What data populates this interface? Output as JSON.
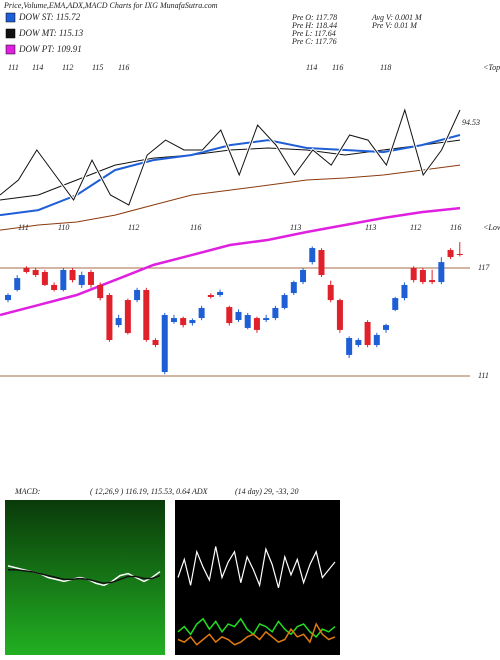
{
  "chart_data": [
    {
      "type": "candlestick",
      "title": "Price,Volume,EMA,ADX,MACD Charts for IXG MunafaSutra.com",
      "legend": [
        {
          "label": "DOW ST: 115.72",
          "color": "#1f5fd6"
        },
        {
          "label": "DOW MT: 115.13",
          "color": "#111111"
        },
        {
          "label": "DOW PT: 109.91",
          "color": "#e020e0"
        }
      ],
      "info": [
        "Pre  O: 117.78",
        "Pre  H: 118.44",
        "Pre  L: 117.64",
        "Pre  C: 117.76",
        "Avg  V: 0.001 M",
        "Pre  V: 0.01 M"
      ],
      "annotations": [
        "111",
        "114",
        "112",
        "115",
        "116",
        "114",
        "116",
        "118",
        "<Tops",
        "94.53",
        "111",
        "110",
        "112",
        "116",
        "113",
        "113",
        "112",
        "116",
        "<Lows"
      ],
      "ylim": [
        105.22,
        128.56
      ],
      "yticks": [
        117,
        111
      ],
      "up_color": "#1f5fd6",
      "down_color": "#e0202a",
      "open": [
        115.22,
        115.78,
        117.0,
        116.89,
        116.78,
        116.06,
        115.78,
        116.89,
        116.06,
        116.78,
        116.06,
        115.5,
        113.83,
        115.22,
        115.22,
        115.78,
        113.0,
        111.22,
        114.0,
        114.22,
        113.94,
        114.22,
        115.5,
        115.5,
        114.83,
        114.11,
        113.67,
        114.22,
        114.11,
        114.22,
        114.78,
        115.61,
        116.22,
        117.33,
        118.0,
        116.06,
        115.22,
        112.17,
        112.72,
        114.0,
        112.72,
        113.56,
        114.67,
        115.33,
        117.0,
        116.89,
        116.33,
        116.22,
        118.0,
        117.78
      ],
      "high": [
        115.6,
        116.6,
        117.1,
        117.0,
        116.9,
        116.2,
        117.0,
        117.0,
        116.8,
        116.9,
        116.2,
        115.6,
        114.4,
        115.3,
        115.9,
        115.9,
        113.1,
        114.5,
        114.4,
        114.3,
        114.2,
        114.9,
        115.6,
        115.8,
        114.9,
        114.7,
        114.5,
        114.3,
        114.4,
        114.9,
        115.6,
        116.3,
        117.0,
        118.2,
        118.1,
        116.3,
        115.3,
        113.2,
        113.1,
        114.1,
        113.4,
        113.9,
        115.4,
        116.2,
        117.1,
        117.0,
        116.9,
        117.6,
        118.1,
        118.44
      ],
      "low": [
        115.1,
        115.7,
        116.7,
        116.5,
        116.0,
        115.7,
        115.7,
        116.2,
        115.9,
        115.9,
        115.2,
        112.9,
        113.7,
        113.3,
        115.1,
        112.9,
        112.6,
        111.1,
        113.9,
        113.7,
        113.8,
        114.1,
        115.3,
        115.4,
        113.8,
        114.0,
        113.6,
        113.4,
        114.0,
        114.1,
        114.7,
        115.5,
        116.1,
        117.2,
        116.5,
        115.1,
        113.4,
        112.0,
        112.6,
        112.6,
        112.6,
        113.4,
        114.6,
        115.2,
        116.2,
        116.1,
        116.1,
        116.1,
        117.5,
        117.64
      ],
      "close": [
        115.5,
        116.44,
        116.78,
        116.61,
        116.06,
        115.78,
        116.89,
        116.33,
        116.61,
        116.06,
        115.33,
        113.0,
        114.22,
        113.39,
        115.78,
        113.0,
        112.72,
        114.39,
        114.22,
        113.83,
        114.11,
        114.78,
        115.39,
        115.67,
        113.94,
        114.56,
        114.39,
        113.56,
        114.22,
        114.78,
        115.5,
        116.22,
        116.89,
        118.11,
        116.61,
        115.22,
        113.56,
        113.11,
        113.0,
        112.72,
        113.28,
        113.83,
        115.33,
        116.06,
        116.33,
        116.22,
        116.22,
        117.33,
        117.61,
        117.76
      ],
      "overlays": [
        {
          "color": "#8b3a0e",
          "values": [
            119.11,
            119.39,
            119.56,
            119.94,
            120.5,
            121.06,
            121.33,
            121.61,
            121.89,
            122.0,
            122.17,
            122.44,
            122.72
          ]
        },
        {
          "color": "#111111",
          "values": [
            120.78,
            121.06,
            121.89,
            122.72,
            123.11,
            123.28,
            123.56,
            123.67,
            123.56,
            123.28,
            123.56,
            123.83,
            124.11
          ]
        },
        {
          "color": "#1f5fd6",
          "values": [
            119.94,
            120.22,
            121.06,
            122.44,
            123.0,
            123.28,
            123.83,
            124.11,
            123.67,
            123.56,
            123.44,
            123.83,
            124.39
          ]
        },
        {
          "color": "#e020e0",
          "values": [
            114.39,
            114.94,
            115.5,
            116.33,
            117.17,
            117.72,
            118.28,
            118.56,
            119.0,
            119.39,
            119.78,
            120.11,
            120.33
          ]
        },
        {
          "color": "#111111",
          "values": [
            121.06,
            121.89,
            123.56,
            122.17,
            120.78,
            123.0,
            121.06,
            120.5,
            123.28,
            124.11,
            123.56,
            123.56,
            124.67,
            122.17,
            124.94,
            123.83,
            122.17,
            123.56,
            122.72,
            124.39,
            124.11,
            122.72,
            125.78,
            122.17,
            123.56,
            125.78
          ]
        }
      ]
    },
    {
      "type": "line",
      "label": "MACD:",
      "text": "( 12,26,9 ) 116.19, 115.53, 0.64 ADX",
      "ylim": [
        -4,
        4
      ],
      "series": [
        {
          "color": "#ffffff",
          "values": [
            0.6,
            0.5,
            0.4,
            0.3,
            0.2,
            0.0,
            -0.1,
            -0.2,
            -0.1,
            0.0,
            -0.1,
            -0.3,
            -0.4,
            -0.2,
            0.1,
            0.2,
            0.0,
            -0.2,
            0.0,
            0.3
          ]
        },
        {
          "color": "#111111",
          "values": [
            0.4,
            0.4,
            0.35,
            0.3,
            0.2,
            0.1,
            0.0,
            -0.1,
            -0.1,
            -0.05,
            -0.1,
            -0.2,
            -0.3,
            -0.25,
            -0.1,
            0.05,
            0.05,
            -0.05,
            -0.05,
            0.1
          ]
        }
      ]
    },
    {
      "type": "line",
      "text": "(14 day) 29, -33, 20",
      "ylim": [
        0,
        60
      ],
      "series": [
        {
          "color": "#ffffff",
          "values": [
            30,
            37,
            27,
            40,
            34,
            29,
            42,
            30,
            36,
            40,
            28,
            38,
            33,
            27,
            41,
            35,
            26,
            38,
            31,
            37,
            28,
            35,
            40,
            30,
            33,
            36
          ]
        },
        {
          "color": "#22dd22",
          "values": [
            9,
            11,
            8,
            12,
            14,
            10,
            13,
            9,
            12,
            11,
            14,
            10,
            8,
            12,
            11,
            9,
            13,
            10,
            8,
            11,
            12,
            9,
            7,
            10,
            9,
            11
          ]
        },
        {
          "color": "#e07a10",
          "values": [
            6,
            5,
            7,
            4,
            6,
            8,
            5,
            7,
            6,
            4,
            5,
            7,
            8,
            6,
            9,
            7,
            5,
            6,
            10,
            7,
            8,
            5,
            12,
            8,
            6,
            7
          ]
        }
      ]
    }
  ]
}
